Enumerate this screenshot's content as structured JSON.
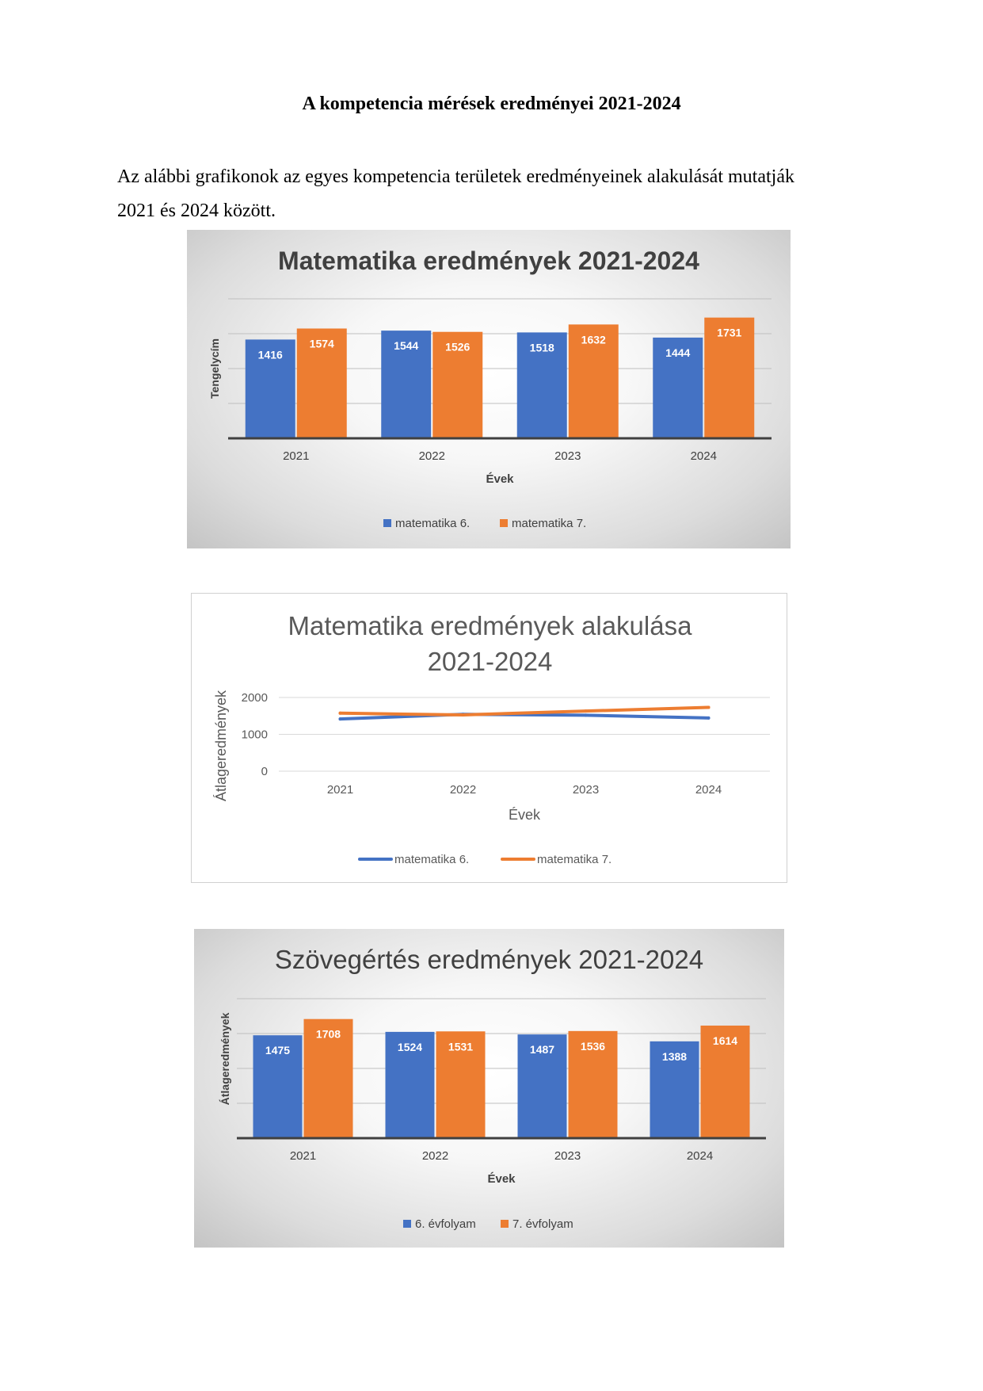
{
  "document": {
    "title": "A kompetencia mérések eredményei 2021-2024",
    "intro_line1": "Az alábbi grafikonok az egyes kompetencia területek eredményeinek alakulását mutatják",
    "intro_line2": "2021 és 2024 között."
  },
  "colors": {
    "series1": "#4472c4",
    "series2": "#ed7d31"
  },
  "chart_data": [
    {
      "type": "bar",
      "title": "Matematika eredmények 2021-2024",
      "xlabel": "Évek",
      "ylabel": "Tengelycím",
      "categories": [
        "2021",
        "2022",
        "2023",
        "2024"
      ],
      "series": [
        {
          "name": "matematika 6.",
          "values": [
            1416,
            1544,
            1518,
            1444
          ]
        },
        {
          "name": "matematika 7.",
          "values": [
            1574,
            1526,
            1632,
            1731
          ]
        }
      ],
      "ylim": [
        0,
        2000
      ],
      "grid": true,
      "data_labels": true,
      "legend": "bottom"
    },
    {
      "type": "line",
      "title": "Matematika eredmények alakulása 2021-2024",
      "xlabel": "Évek",
      "ylabel": "Átlageredmények",
      "categories": [
        "2021",
        "2022",
        "2023",
        "2024"
      ],
      "series": [
        {
          "name": "matematika 6.",
          "values": [
            1416,
            1544,
            1518,
            1444
          ]
        },
        {
          "name": "matematika 7.",
          "values": [
            1574,
            1526,
            1632,
            1731
          ]
        }
      ],
      "yticks": [
        "0",
        "1000",
        "2000"
      ],
      "ylim": [
        0,
        2000
      ],
      "grid": true,
      "legend": "bottom"
    },
    {
      "type": "bar",
      "title": "Szövegértés eredmények 2021-2024",
      "xlabel": "Évek",
      "ylabel": "Átlageredmények",
      "categories": [
        "2021",
        "2022",
        "2023",
        "2024"
      ],
      "series": [
        {
          "name": "6. évfolyam",
          "values": [
            1475,
            1524,
            1487,
            1388
          ]
        },
        {
          "name": "7. évfolyam",
          "values": [
            1708,
            1531,
            1536,
            1614
          ]
        }
      ],
      "ylim": [
        0,
        2000
      ],
      "grid": true,
      "data_labels": true,
      "legend": "bottom"
    }
  ]
}
